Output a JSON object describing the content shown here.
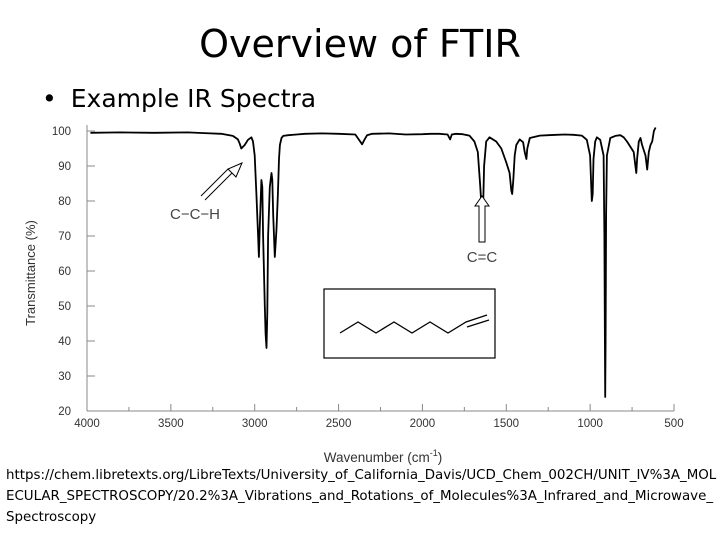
{
  "slide": {
    "title": "Overview of FTIR",
    "bullet": "Example IR Spectra",
    "source_url": "https://chem.libretexts.org/LibreTexts/University_of_California_Davis/UCD_Chem_002CH/UNIT_IV%3A_MOLECULAR_SPECTROSCOPY/20.2%3A_Vibrations_and_Rotations_of_Molecules%3A_Infrared_and_Microwave_Spectroscopy"
  },
  "chart_data": {
    "type": "line",
    "title": "",
    "xlabel": "Wavenumber (cm",
    "xlabel_superscript": "-1",
    "xlabel_suffix": ")",
    "ylabel": "Transmittance (%)",
    "xlim": [
      4000,
      500
    ],
    "ylim": [
      20,
      100
    ],
    "x_reversed": true,
    "x_ticks": [
      4000,
      3500,
      3000,
      2500,
      2000,
      1500,
      1000,
      500
    ],
    "y_ticks": [
      100,
      90,
      80,
      70,
      60,
      50,
      40,
      30,
      20
    ],
    "grid": false,
    "line_color": "#000000",
    "series": [
      {
        "x": [
          3980,
          3800,
          3600,
          3400,
          3300,
          3200,
          3130,
          3100,
          3090,
          3080,
          3060,
          3040,
          3020,
          3010,
          3000,
          2990,
          2980,
          2975,
          2970,
          2960,
          2955,
          2950,
          2940,
          2935,
          2930,
          2925,
          2920,
          2910,
          2900,
          2895,
          2890,
          2880,
          2870,
          2862,
          2855,
          2850,
          2840,
          2830,
          2800,
          2750,
          2700,
          2600,
          2500,
          2400,
          2380,
          2360,
          2345,
          2330,
          2300,
          2200,
          2100,
          2000,
          1950,
          1900,
          1850,
          1835,
          1825,
          1800,
          1760,
          1720,
          1690,
          1670,
          1655,
          1645,
          1642,
          1638,
          1632,
          1620,
          1600,
          1560,
          1530,
          1500,
          1480,
          1470,
          1465,
          1458,
          1450,
          1440,
          1420,
          1400,
          1390,
          1380,
          1375,
          1360,
          1300,
          1250,
          1200,
          1150,
          1100,
          1050,
          1020,
          1000,
          995,
          990,
          985,
          980,
          970,
          960,
          940,
          920,
          915,
          912,
          910,
          908,
          905,
          900,
          880,
          850,
          820,
          800,
          780,
          740,
          730,
          725,
          720,
          710,
          700,
          690,
          670,
          660,
          650,
          640,
          630,
          620,
          610
        ],
        "y": [
          99.5,
          99.6,
          99.5,
          99.6,
          99.4,
          99.2,
          98.6,
          97.6,
          96.5,
          95.0,
          96.0,
          97.5,
          98.2,
          97.0,
          93.0,
          82.0,
          70.0,
          64.0,
          72.0,
          86.0,
          84.0,
          70.0,
          50.0,
          42.0,
          38.0,
          48.0,
          70.0,
          84.0,
          88.0,
          86.0,
          76.0,
          64.0,
          72.0,
          82.0,
          92.0,
          96.0,
          98.0,
          98.6,
          98.8,
          99.0,
          99.2,
          99.3,
          99.2,
          99.0,
          97.6,
          96.2,
          97.6,
          98.8,
          99.2,
          99.3,
          99.0,
          99.1,
          99.2,
          99.2,
          99.0,
          97.6,
          99.0,
          99.2,
          99.1,
          98.7,
          97.0,
          94.0,
          84.0,
          76.0,
          75.0,
          78.0,
          90.0,
          97.0,
          98.2,
          97.0,
          95.0,
          91.0,
          88.0,
          83.0,
          82.0,
          86.0,
          93.0,
          96.0,
          97.6,
          96.8,
          94.0,
          92.0,
          95.0,
          98.0,
          98.7,
          98.8,
          98.9,
          99.0,
          98.9,
          98.7,
          97.5,
          93.0,
          86.0,
          80.0,
          82.0,
          92.0,
          97.0,
          98.2,
          97.5,
          93.0,
          70.0,
          40.0,
          24.0,
          40.0,
          76.0,
          93.0,
          98.0,
          98.6,
          98.8,
          98.2,
          97.0,
          94.0,
          90.0,
          88.0,
          92.0,
          97.0,
          98.0,
          96.0,
          93.0,
          89.0,
          94.0,
          96.0,
          97.0,
          100.0,
          101.0
        ]
      }
    ],
    "annotations": [
      {
        "text": "C−C−H",
        "points_to_x": 3080
      },
      {
        "text": "C=C",
        "points_to_x": 1642
      }
    ],
    "inset": "skeletal structure of 1-octene"
  }
}
